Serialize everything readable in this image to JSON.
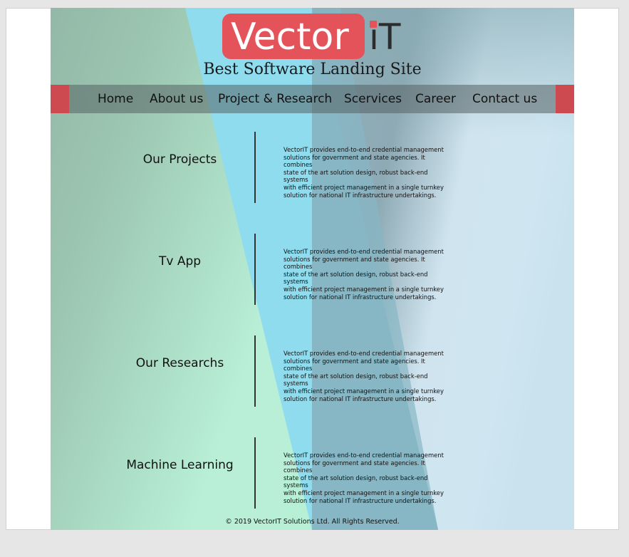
{
  "logo": {
    "vector": "Vector",
    "it": "iT"
  },
  "tagline": "Best Software Landing Site",
  "nav": [
    "Home",
    "About us",
    "Project & Research",
    "Scervices",
    "Career",
    "Contact us"
  ],
  "sections": [
    {
      "title": "Our Projects",
      "lines": [
        "VectorIT provides end-to-end credential management",
        "solutions for government and state agencies. It combines",
        "state of the art solution design, robust back-end systems",
        "with efficient project management in a single turnkey",
        "solution for national IT infrastructure undertakings."
      ]
    },
    {
      "title": "Tv App",
      "lines": [
        "VectorIT provides end-to-end credential management",
        "solutions for government and state agencies. It combines",
        "state of the art solution design, robust back-end systems",
        "with efficient project management in a single turnkey",
        "solution for national IT infrastructure undertakings."
      ]
    },
    {
      "title": "Our Researchs",
      "lines": [
        "VectorIT provides end-to-end credential management",
        "solutions for government and state agencies. It combines",
        "state of the art solution design, robust back-end systems",
        "with efficient project management in a single turnkey",
        "solution for national IT infrastructure undertakings."
      ]
    },
    {
      "title": "Machine Learning",
      "lines": [
        "VectorIT provides end-to-end credential management",
        "solutions for government and state agencies. It combines",
        "state of the art solution design, robust back-end systems",
        "with efficient project management in a single turnkey",
        "solution for national IT infrastructure undertakings."
      ]
    }
  ],
  "footer": "© 2019 VectorIT Solutions Ltd. All Rights Reserved.",
  "colors": {
    "brand_red": "#e5535a",
    "nav_cap": "#cc4a50",
    "cyan_band": "#8fdcef",
    "green": "#b7f0d5",
    "slate": "#88a8b3"
  }
}
